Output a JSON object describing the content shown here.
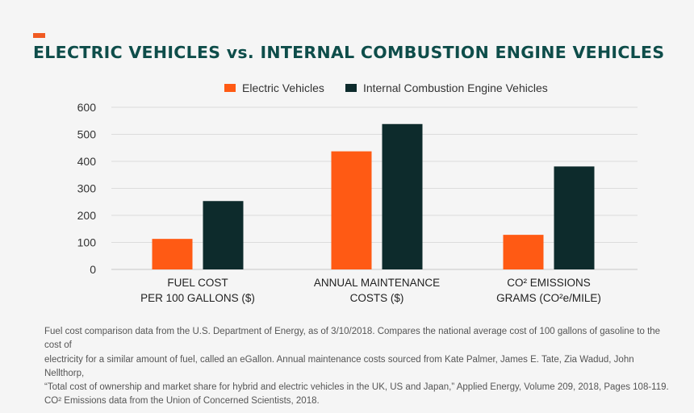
{
  "title": "ELECTRIC VEHICLES vs. INTERNAL COMBUSTION ENGINE VEHICLES",
  "colors": {
    "accent": "#f05a22",
    "title": "#0e4d4a",
    "ev": "#ff5a14",
    "ice": "#0d2b2c",
    "grid": "#dcdcdc",
    "background": "#f5f5f5"
  },
  "chart_data": {
    "type": "bar",
    "categories": [
      [
        "FUEL COST",
        "PER 100 GALLONS ($)"
      ],
      [
        "ANNUAL MAINTENANCE",
        "COSTS ($)"
      ],
      [
        "CO² EMISSIONS",
        "GRAMS (CO²e/MILE)"
      ]
    ],
    "series": [
      {
        "name": "Electric Vehicles",
        "values": [
          113,
          437,
          128
        ]
      },
      {
        "name": "Internal Combustion Engine Vehicles",
        "values": [
          253,
          538,
          381
        ]
      }
    ],
    "ylim": [
      0,
      600
    ],
    "yticks": [
      "0",
      "100",
      "200",
      "300",
      "400",
      "500",
      "600"
    ],
    "grid": true,
    "legend_position": "top-center"
  },
  "footnote": [
    "Fuel cost comparison data from the U.S. Department of Energy, as of 3/10/2018. Compares the national average cost of 100 gallons of gasoline to the cost of",
    "electricity for a similar amount of fuel, called an eGallon. Annual maintenance costs sourced from Kate Palmer, James E. Tate, Zia Wadud, John Nellthorp,",
    "“Total cost of ownership and market share for hybrid and electric vehicles in the UK, US and Japan,” Applied Energy, Volume 209, 2018, Pages 108-119.",
    "CO² Emissions data from the Union of Concerned Scientists, 2018."
  ]
}
